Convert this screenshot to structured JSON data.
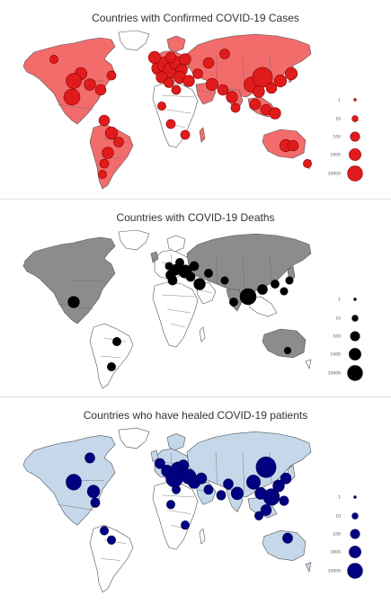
{
  "maps": [
    {
      "title": "Countries with Confirmed COVID-19 Cases",
      "land_color": "#f26c6c",
      "bubble_color": "#e01b1b",
      "bubble_stroke": "#8a0000",
      "legend": [
        "1",
        "10",
        "100",
        "1000",
        "10000"
      ]
    },
    {
      "title": "Countries with COVID-19 Deaths",
      "land_color": "#8c8c8c",
      "bubble_color": "#000000",
      "bubble_stroke": "#000000",
      "legend": [
        "1",
        "10",
        "100",
        "1000",
        "10000"
      ]
    },
    {
      "title": "Countries who have healed COVID-19 patients",
      "land_color": "#c4d8ea",
      "bubble_color": "#000080",
      "bubble_stroke": "#000050",
      "legend": [
        "1",
        "10",
        "100",
        "1000",
        "10000"
      ]
    }
  ]
}
